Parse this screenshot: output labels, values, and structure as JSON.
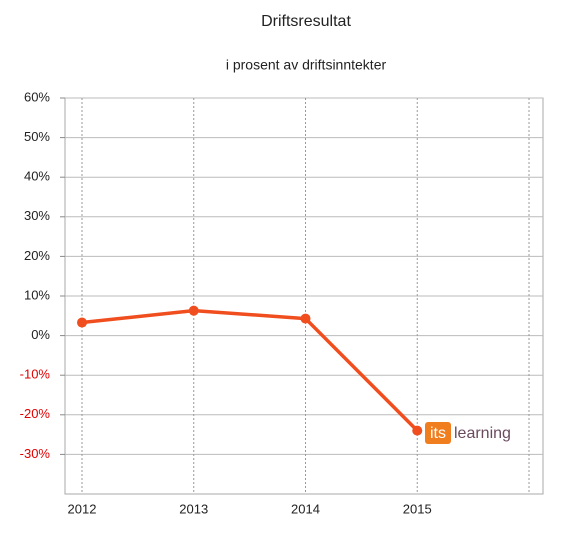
{
  "chart_data": {
    "type": "line",
    "title": "Driftsresultat",
    "subtitle": "i prosent av driftsinntekter",
    "categories": [
      "2012",
      "2013",
      "2014",
      "2015",
      null
    ],
    "series": [
      {
        "name": "Driftsresultat",
        "color": "#f04e1e",
        "values": [
          3.3,
          6.3,
          4.3,
          -24,
          null
        ]
      }
    ],
    "ylim": [
      -40,
      60
    ],
    "yticks": [
      {
        "value": 60,
        "label": "60%"
      },
      {
        "value": 50,
        "label": "50%"
      },
      {
        "value": 40,
        "label": "40%"
      },
      {
        "value": 30,
        "label": "30%"
      },
      {
        "value": 20,
        "label": "20%"
      },
      {
        "value": 10,
        "label": "10%"
      },
      {
        "value": 0,
        "label": "0%"
      },
      {
        "value": -10,
        "label": "-10%"
      },
      {
        "value": -20,
        "label": "-20%"
      },
      {
        "value": -30,
        "label": "-30%"
      }
    ],
    "negative_tick_color": "#e00000",
    "grid": true,
    "logo": {
      "badge": "its",
      "text": "learning"
    }
  }
}
